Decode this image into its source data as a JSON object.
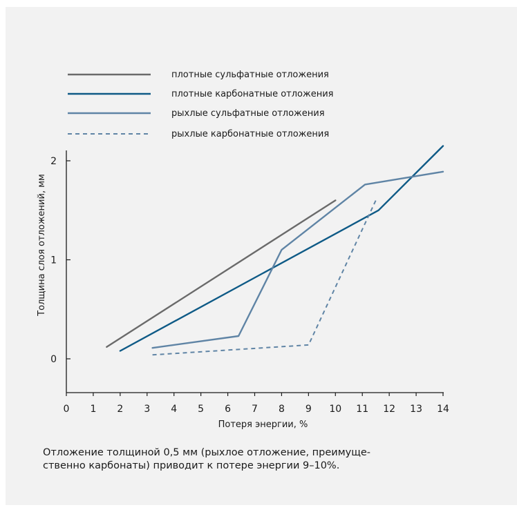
{
  "chart_data": {
    "type": "line",
    "xlabel": "Потеря энергии, %",
    "ylabel": "Толщина слоя отложений, мм",
    "xlim": [
      0,
      14
    ],
    "ylim": [
      -0.33,
      2.1
    ],
    "x_ticks": [
      "0",
      "1",
      "2",
      "3",
      "4",
      "5",
      "6",
      "7",
      "8",
      "9",
      "10",
      "11",
      "12",
      "13",
      "14"
    ],
    "y_ticks": [
      "0",
      "1",
      "2"
    ],
    "legend_position": "top-left",
    "series": [
      {
        "name": "плотные сульфатные отложения",
        "color": "#6a6a6a",
        "dash": false,
        "points": [
          [
            1.5,
            0.12
          ],
          [
            10,
            1.6
          ]
        ]
      },
      {
        "name": "плотные карбонатные отложения",
        "color": "#0e5a86",
        "dash": false,
        "points": [
          [
            2,
            0.08
          ],
          [
            11.6,
            1.5
          ],
          [
            14,
            2.15
          ]
        ]
      },
      {
        "name": "рыхлые сульфатные отложения",
        "color": "#5f84a5",
        "dash": false,
        "points": [
          [
            3.2,
            0.11
          ],
          [
            6.4,
            0.23
          ],
          [
            8,
            1.1
          ],
          [
            11.1,
            1.76
          ],
          [
            14,
            1.89
          ]
        ]
      },
      {
        "name": "рыхлые карбонатные отложения",
        "color": "#5f84a5",
        "dash": true,
        "points": [
          [
            3.2,
            0.04
          ],
          [
            9,
            0.14
          ],
          [
            11.5,
            1.6
          ]
        ]
      }
    ]
  },
  "caption": {
    "line1": "Отложение толщиной 0,5 мм (рыхлое отложение, преимуще-",
    "line2": "ственно карбонаты) приводит к потере энергии 9–10%."
  }
}
